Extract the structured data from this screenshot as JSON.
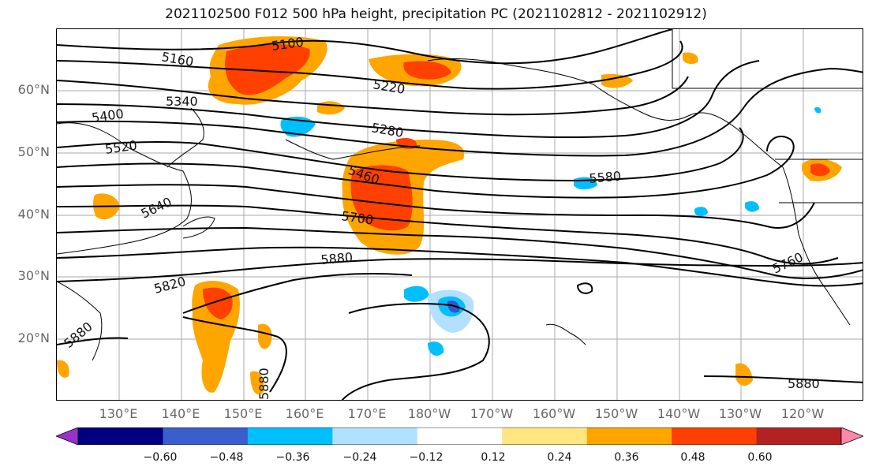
{
  "title": "2021102500 F012 500 hPa height, precipitation PC (2021102812 - 2021102912)",
  "map": {
    "lat_labels": [
      "60°N",
      "50°N",
      "40°N",
      "30°N",
      "20°N"
    ],
    "lon_labels": [
      "130°E",
      "140°E",
      "150°E",
      "160°E",
      "170°E",
      "180°W",
      "170°W",
      "160°W",
      "150°W",
      "140°W",
      "130°W",
      "120°W"
    ],
    "contour_labels": [
      "5100",
      "5160",
      "5220",
      "5280",
      "5340",
      "5400",
      "5460",
      "5520",
      "5580",
      "5640",
      "5700",
      "5760",
      "5820",
      "5880",
      "5880",
      "5880",
      "5880"
    ],
    "precip_colors": {
      "pos_low": "#ffe680",
      "pos_mid": "#ffa500",
      "pos_high": "#ff4000",
      "neg_low": "#b3e0ff",
      "neg_mid": "#00bfff",
      "neg_high": "#3355cc"
    }
  },
  "colorbar": {
    "ticks": [
      "−0.60",
      "−0.48",
      "−0.36",
      "−0.24",
      "−0.12",
      "0.12",
      "0.24",
      "0.36",
      "0.48",
      "0.60"
    ],
    "colors": [
      "#9932cc",
      "#000080",
      "#3a5fcd",
      "#00bfff",
      "#b0e2ff",
      "#ffffff",
      "#ffe680",
      "#ffa500",
      "#ff4000",
      "#b22222",
      "#ff88aa"
    ]
  }
}
